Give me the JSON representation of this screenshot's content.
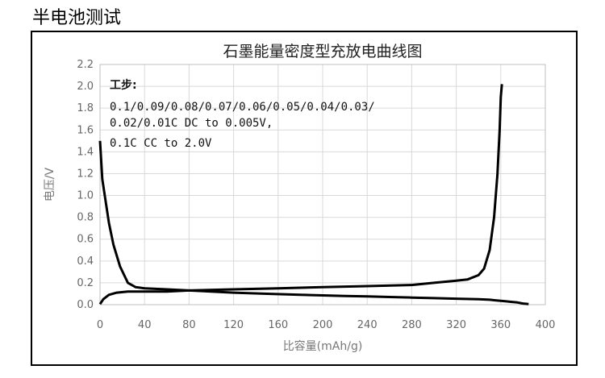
{
  "heading": "半电池测试",
  "chart_data": {
    "type": "line",
    "title": "石墨能量密度型充放电曲线图",
    "xlabel": "比容量(mAh/g)",
    "ylabel": "电压/V",
    "xlim": [
      0,
      400
    ],
    "ylim": [
      0,
      2.2
    ],
    "xticks": [
      0,
      40,
      80,
      120,
      160,
      200,
      240,
      280,
      320,
      360,
      400
    ],
    "yticks": [
      0.0,
      0.2,
      0.4,
      0.6,
      0.8,
      1.0,
      1.2,
      1.4,
      1.6,
      1.8,
      2.0,
      2.2
    ],
    "grid": true,
    "annotations": [
      "工步:",
      "0.1/0.09/0.08/0.07/0.06/0.05/0.04/0.03/",
      "0.02/0.01C DC to 0.005V,",
      "0.1C CC to 2.0V"
    ],
    "series": [
      {
        "x": [
          0,
          2,
          5,
          8,
          12,
          18,
          25,
          32,
          40,
          60,
          80,
          100,
          120,
          150,
          180,
          200,
          220,
          240,
          260,
          280,
          300,
          320,
          340,
          350,
          355,
          360,
          365,
          370,
          375,
          380,
          385
        ],
        "y": [
          1.5,
          1.15,
          0.95,
          0.75,
          0.55,
          0.35,
          0.2,
          0.16,
          0.15,
          0.14,
          0.13,
          0.12,
          0.11,
          0.1,
          0.09,
          0.085,
          0.08,
          0.075,
          0.07,
          0.065,
          0.06,
          0.055,
          0.05,
          0.045,
          0.04,
          0.035,
          0.03,
          0.025,
          0.02,
          0.01,
          0.005
        ]
      },
      {
        "x": [
          0,
          3,
          8,
          15,
          25,
          40,
          60,
          80,
          120,
          160,
          200,
          240,
          280,
          300,
          320,
          330,
          340,
          345,
          350,
          354,
          357,
          359,
          360,
          361
        ],
        "y": [
          0.005,
          0.05,
          0.09,
          0.11,
          0.12,
          0.12,
          0.12,
          0.13,
          0.14,
          0.15,
          0.16,
          0.17,
          0.18,
          0.2,
          0.22,
          0.23,
          0.27,
          0.33,
          0.5,
          0.8,
          1.2,
          1.6,
          1.9,
          2.02
        ]
      }
    ]
  }
}
